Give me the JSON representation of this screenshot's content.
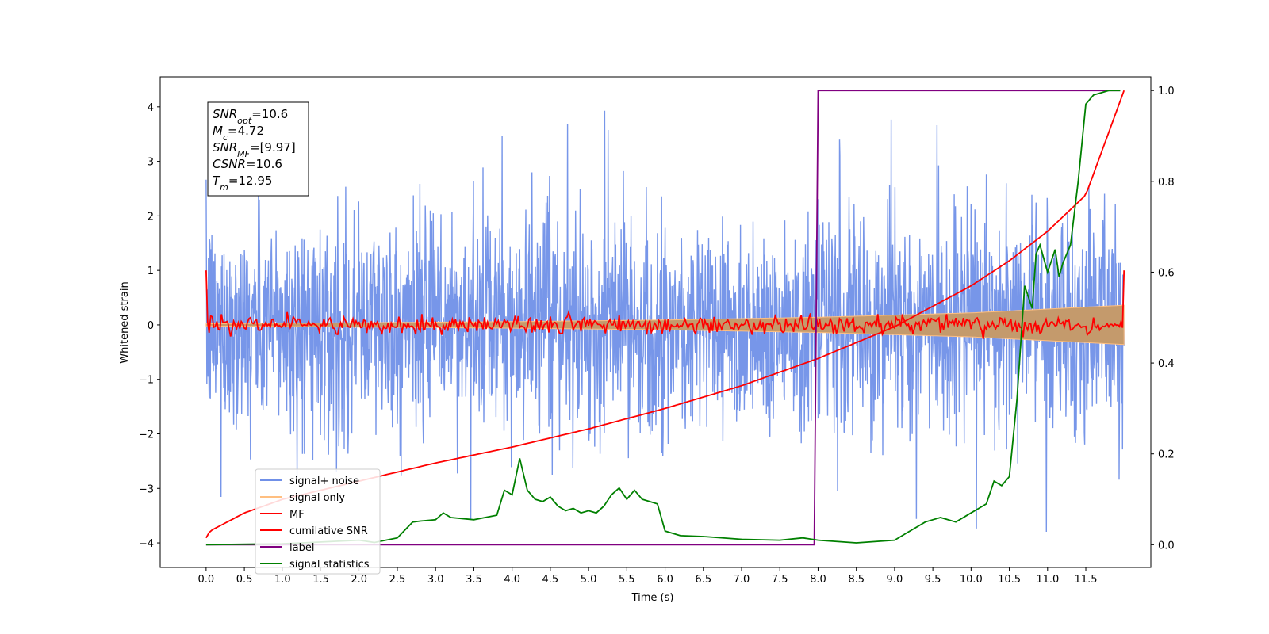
{
  "chart_data": {
    "type": "line",
    "xlabel": "Time (s)",
    "ylabel": "Whitened strain",
    "xlim": [
      -0.6,
      12.35
    ],
    "ylim": [
      -4.45,
      4.55
    ],
    "y2lim": [
      -0.05,
      1.03
    ],
    "x_ticks": [
      "0.0",
      "0.5",
      "1.0",
      "1.5",
      "2.0",
      "2.5",
      "3.0",
      "3.5",
      "4.0",
      "4.5",
      "5.0",
      "5.5",
      "6.0",
      "6.5",
      "7.0",
      "7.5",
      "8.0",
      "8.5",
      "9.0",
      "9.5",
      "10.0",
      "10.5",
      "11.0",
      "11.5"
    ],
    "y_ticks": [
      "4",
      "3",
      "2",
      "1",
      "0",
      "−1",
      "−2",
      "−3",
      "−4"
    ],
    "y2_ticks": [
      "1.0",
      "0.8",
      "0.6",
      "0.4",
      "0.2",
      "0.0"
    ],
    "info_box": {
      "lines": [
        {
          "main": "SNR",
          "sub": "opt",
          "rest": "=10.6"
        },
        {
          "main": "M",
          "sub": "c",
          "rest": "=4.72"
        },
        {
          "main": "SNR",
          "sub": "MF",
          "rest": "=[9.97]"
        },
        {
          "main": "CSNR",
          "sub": "",
          "rest": "=10.6"
        },
        {
          "main": "T",
          "sub": "m",
          "rest": "=12.95"
        }
      ]
    },
    "legend": {
      "placement": "lower-left",
      "entries": [
        {
          "label": "signal+ noise",
          "color": "#7090e8"
        },
        {
          "label": "signal only",
          "color": "#ffbf80"
        },
        {
          "label": "MF",
          "color": "#ff0000"
        },
        {
          "label": "cumilative SNR",
          "color": "#ff0000"
        },
        {
          "label": "label",
          "color": "#800080"
        },
        {
          "label": "signal statistics",
          "color": "#008000"
        }
      ]
    },
    "series": [
      {
        "name": "signal+ noise",
        "axis": "left",
        "color": "#7090e8",
        "x_range": [
          0,
          12
        ],
        "amplitude_typical": 1.6,
        "amplitude_peak": 4.0
      },
      {
        "name": "signal only",
        "axis": "left",
        "color": "#ffbf80",
        "x": [
          0,
          2,
          4,
          6,
          8,
          10,
          12
        ],
        "envelope": [
          0.02,
          0.04,
          0.06,
          0.09,
          0.14,
          0.22,
          0.36
        ]
      },
      {
        "name": "MF",
        "axis": "left",
        "color": "#ff0000",
        "x_range": [
          0,
          12
        ],
        "start_value": 1.0,
        "end_value": 1.0,
        "amplitude_typical": 0.15
      },
      {
        "name": "cumilative SNR",
        "axis": "right",
        "color": "#ff0000",
        "x": [
          0,
          0.05,
          0.5,
          1,
          2,
          3,
          4,
          5,
          6,
          7,
          8,
          9,
          10,
          10.5,
          11,
          11.5,
          12
        ],
        "values": [
          0.015,
          0.03,
          0.07,
          0.1,
          0.14,
          0.18,
          0.215,
          0.255,
          0.3,
          0.35,
          0.41,
          0.48,
          0.57,
          0.625,
          0.69,
          0.77,
          1.0
        ]
      },
      {
        "name": "label",
        "axis": "right",
        "color": "#800080",
        "x": [
          0,
          7.95,
          8.0,
          11.95
        ],
        "values": [
          0,
          0,
          1,
          1
        ]
      },
      {
        "name": "signal statistics",
        "axis": "right",
        "color": "#008000",
        "x": [
          0,
          1,
          2,
          2.2,
          2.5,
          2.7,
          2.8,
          3,
          3.1,
          3.2,
          3.5,
          3.8,
          3.9,
          4.0,
          4.1,
          4.2,
          4.3,
          4.4,
          4.5,
          4.6,
          4.7,
          4.8,
          4.9,
          5.0,
          5.1,
          5.2,
          5.3,
          5.4,
          5.5,
          5.6,
          5.7,
          5.8,
          5.9,
          6.0,
          6.2,
          6.5,
          7.0,
          7.5,
          7.8,
          8.0,
          8.5,
          9.0,
          9.2,
          9.4,
          9.5,
          9.6,
          9.8,
          10.0,
          10.1,
          10.2,
          10.3,
          10.4,
          10.5,
          10.6,
          10.7,
          10.8,
          10.85,
          10.9,
          11.0,
          11.1,
          11.15,
          11.2,
          11.3,
          11.4,
          11.5,
          11.6,
          11.8,
          11.95
        ],
        "values": [
          0.0,
          0.002,
          0.01,
          0.005,
          0.015,
          0.05,
          0.052,
          0.055,
          0.07,
          0.06,
          0.055,
          0.065,
          0.12,
          0.11,
          0.19,
          0.12,
          0.1,
          0.095,
          0.105,
          0.085,
          0.075,
          0.08,
          0.07,
          0.075,
          0.07,
          0.085,
          0.11,
          0.125,
          0.1,
          0.12,
          0.1,
          0.095,
          0.09,
          0.03,
          0.02,
          0.018,
          0.012,
          0.01,
          0.015,
          0.01,
          0.004,
          0.01,
          0.03,
          0.05,
          0.055,
          0.06,
          0.05,
          0.07,
          0.08,
          0.09,
          0.14,
          0.13,
          0.15,
          0.32,
          0.57,
          0.52,
          0.64,
          0.66,
          0.6,
          0.65,
          0.59,
          0.62,
          0.66,
          0.8,
          0.97,
          0.99,
          1.0,
          1.0
        ]
      }
    ]
  }
}
